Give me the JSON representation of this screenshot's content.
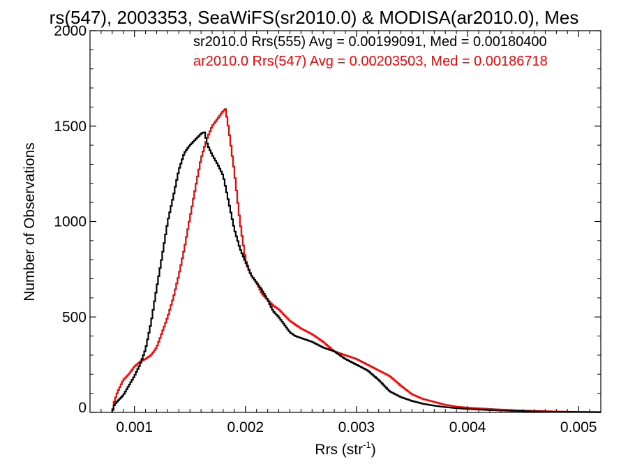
{
  "chart_data": {
    "type": "line",
    "title": "rs(547), 2003353, SeaWiFS(sr2010.0) & MODISA(ar2010.0), Mes",
    "xlabel": "Rrs (str",
    "xlabel_sup": "-1",
    "xlabel_end": ")",
    "ylabel": "Number of Observations",
    "xlim": [
      0.0006,
      0.0052
    ],
    "ylim": [
      0,
      2000
    ],
    "x_ticks": [
      "0.001",
      "0.002",
      "0.003",
      "0.004",
      "0.005"
    ],
    "x_tick_values": [
      0.001,
      0.002,
      0.003,
      0.004,
      0.005
    ],
    "y_ticks": [
      "0",
      "500",
      "1000",
      "1500",
      "2000"
    ],
    "y_tick_values": [
      0,
      500,
      1000,
      1500,
      2000
    ],
    "grid": false,
    "legend_position": "top-right",
    "series": [
      {
        "name": "sr2010.0 Rrs(555) Avg = 0.00199091, Med = 0.00180400",
        "color": "#000000",
        "x": [
          0.0008,
          0.00082,
          0.00085,
          0.0009,
          0.00095,
          0.001,
          0.00105,
          0.0011,
          0.00115,
          0.0012,
          0.00125,
          0.0013,
          0.00135,
          0.0014,
          0.00145,
          0.0015,
          0.00155,
          0.0016,
          0.00163,
          0.00166,
          0.0017,
          0.00175,
          0.0018,
          0.00185,
          0.0019,
          0.00195,
          0.002,
          0.00205,
          0.0021,
          0.00215,
          0.0022,
          0.00225,
          0.0023,
          0.00235,
          0.0024,
          0.00245,
          0.0025,
          0.0026,
          0.0027,
          0.0028,
          0.0029,
          0.003,
          0.0031,
          0.0032,
          0.0033,
          0.0034,
          0.0035,
          0.0036,
          0.0037,
          0.0038,
          0.0039,
          0.004,
          0.0042,
          0.0044,
          0.0046,
          0.0048,
          0.005,
          0.0052
        ],
        "values": [
          0,
          40,
          60,
          90,
          140,
          190,
          250,
          330,
          470,
          650,
          820,
          1000,
          1130,
          1270,
          1360,
          1400,
          1430,
          1460,
          1470,
          1400,
          1350,
          1300,
          1240,
          1100,
          960,
          860,
          790,
          720,
          680,
          640,
          590,
          530,
          500,
          460,
          420,
          400,
          390,
          370,
          340,
          320,
          280,
          250,
          220,
          170,
          110,
          80,
          60,
          45,
          35,
          28,
          22,
          18,
          12,
          8,
          5,
          3,
          2,
          1
        ]
      },
      {
        "name": "ar2010.0 Rrs(547) Avg = 0.00203503, Med = 0.00186718",
        "color": "#ff0000",
        "x": [
          0.0008,
          0.00082,
          0.00085,
          0.0009,
          0.00095,
          0.001,
          0.00105,
          0.0011,
          0.00115,
          0.0012,
          0.00125,
          0.0013,
          0.00135,
          0.0014,
          0.00145,
          0.0015,
          0.00155,
          0.0016,
          0.00165,
          0.0017,
          0.00175,
          0.0018,
          0.00182,
          0.00185,
          0.0019,
          0.00195,
          0.002,
          0.00205,
          0.0021,
          0.00215,
          0.0022,
          0.00225,
          0.0023,
          0.00235,
          0.0024,
          0.00245,
          0.0025,
          0.0026,
          0.0027,
          0.0028,
          0.0029,
          0.003,
          0.0031,
          0.0032,
          0.0033,
          0.0034,
          0.0035,
          0.0036,
          0.0037,
          0.0038,
          0.0039,
          0.004,
          0.0042,
          0.0044,
          0.0046,
          0.0048,
          0.005,
          0.0052
        ],
        "values": [
          0,
          60,
          110,
          170,
          200,
          240,
          265,
          280,
          300,
          340,
          420,
          500,
          600,
          720,
          860,
          1020,
          1180,
          1330,
          1430,
          1500,
          1540,
          1580,
          1590,
          1480,
          1260,
          1000,
          800,
          720,
          680,
          620,
          590,
          560,
          540,
          510,
          480,
          460,
          440,
          410,
          370,
          320,
          300,
          280,
          250,
          220,
          190,
          140,
          95,
          70,
          55,
          40,
          30,
          25,
          18,
          12,
          8,
          5,
          3,
          2
        ]
      }
    ]
  }
}
